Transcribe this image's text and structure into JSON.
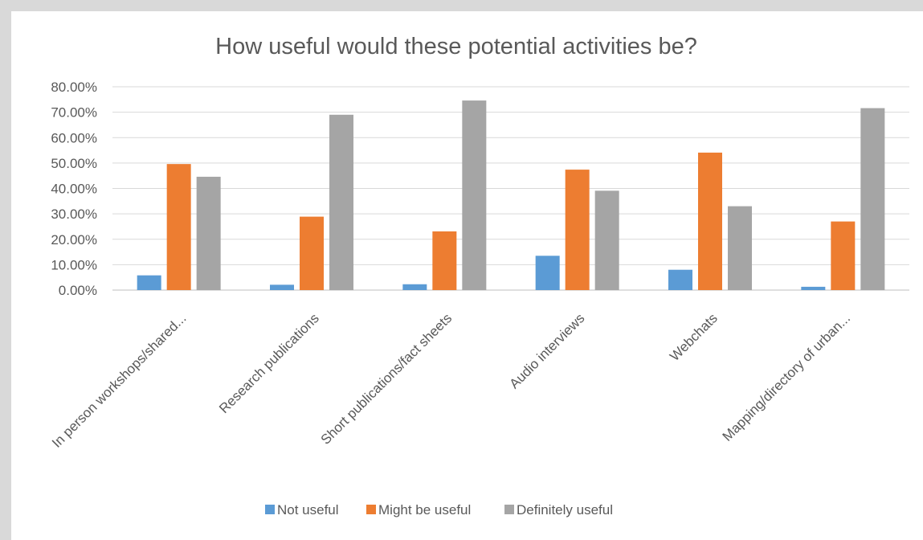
{
  "chart_data": {
    "type": "bar",
    "title": "How useful would these potential activities be?",
    "categories": [
      "In person workshops/shared...",
      "Research publications",
      "Short publications/fact sheets",
      "Audio interviews",
      "Webchats",
      "Mapping/directory of urban..."
    ],
    "series": [
      {
        "name": "Not useful",
        "color": "#5b9bd5",
        "values": [
          5.8,
          2.1,
          2.3,
          13.5,
          8.0,
          1.3
        ]
      },
      {
        "name": "Might be useful",
        "color": "#ed7d31",
        "values": [
          49.6,
          28.9,
          23.1,
          47.4,
          54.1,
          27.0
        ]
      },
      {
        "name": "Definitely useful",
        "color": "#a5a5a5",
        "values": [
          44.6,
          69.0,
          74.6,
          39.1,
          33.0,
          71.6
        ]
      }
    ],
    "y_ticks": [
      "0.00%",
      "10.00%",
      "20.00%",
      "30.00%",
      "40.00%",
      "50.00%",
      "60.00%",
      "70.00%",
      "80.00%"
    ],
    "ylim": [
      0,
      80
    ],
    "grid": true,
    "legend_position": "bottom"
  }
}
